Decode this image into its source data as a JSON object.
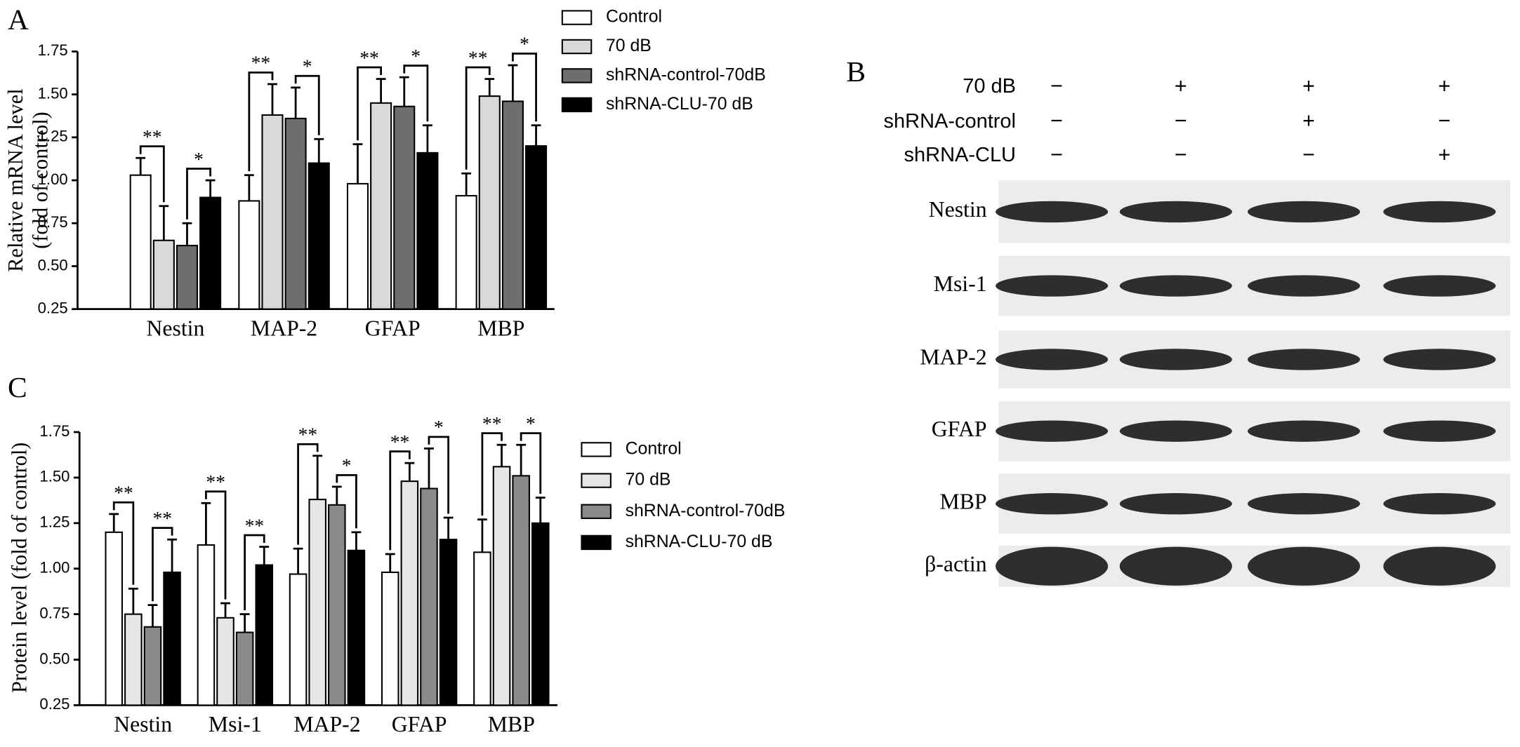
{
  "panel_labels": [
    "A",
    "B",
    "C"
  ],
  "chart_data": [
    {
      "type": "bar",
      "ylabel": [
        "Relative mRNA level",
        "(fold of control)"
      ],
      "categories": [
        "Nestin",
        "MAP-2",
        "GFAP",
        "MBP"
      ],
      "ylim": [
        0.25,
        1.75
      ],
      "yticks": [
        0.25,
        {
          "value": 0.5,
          "label": "0.50"
        },
        0.75,
        {
          "value": 1.0,
          "label": "1.00"
        },
        1.25,
        {
          "value": 1.5,
          "label": "1.50"
        },
        1.75
      ],
      "series": [
        {
          "name": "Control",
          "color": "#ffffff",
          "values": [
            1.03,
            0.88,
            0.98,
            0.91
          ],
          "errors": [
            0.1,
            0.15,
            0.23,
            0.13
          ]
        },
        {
          "name": "70 dB",
          "color": "#d9d9d9",
          "values": [
            0.65,
            1.38,
            1.45,
            1.49
          ],
          "errors": [
            0.2,
            0.18,
            0.14,
            0.1
          ]
        },
        {
          "name": "shRNA-control-70dB",
          "color": "#6e6e6e",
          "values": [
            0.62,
            1.36,
            1.43,
            1.46
          ],
          "errors": [
            0.13,
            0.18,
            0.17,
            0.21
          ]
        },
        {
          "name": "shRNA-CLU-70 dB",
          "color": "#000000",
          "values": [
            0.9,
            1.1,
            1.16,
            1.2
          ],
          "errors": [
            0.1,
            0.14,
            0.16,
            0.12
          ]
        }
      ],
      "significance": [
        [
          "**",
          "*"
        ],
        [
          "**",
          "*"
        ],
        [
          "**",
          "*"
        ],
        [
          "**",
          "*"
        ]
      ]
    },
    {
      "type": "bar",
      "ylabel": [
        "Protein level (fold of control)"
      ],
      "categories": [
        "Nestin",
        "Msi-1",
        "MAP-2",
        "GFAP",
        "MBP"
      ],
      "ylim": [
        0.25,
        1.75
      ],
      "yticks": [
        0.25,
        {
          "value": 0.5,
          "label": "0.50"
        },
        0.75,
        {
          "value": 1.0,
          "label": "1.00"
        },
        1.25,
        {
          "value": 1.5,
          "label": "1.50"
        },
        1.75
      ],
      "series": [
        {
          "name": "Control",
          "color": "#ffffff",
          "values": [
            1.2,
            1.13,
            0.97,
            0.98,
            1.09
          ],
          "errors": [
            0.1,
            0.23,
            0.14,
            0.1,
            0.18
          ]
        },
        {
          "name": "70 dB",
          "color": "#e6e6e6",
          "values": [
            0.75,
            0.73,
            1.38,
            1.48,
            1.56
          ],
          "errors": [
            0.14,
            0.08,
            0.24,
            0.1,
            0.12
          ]
        },
        {
          "name": "shRNA-control-70dB",
          "color": "#8a8a8a",
          "values": [
            0.68,
            0.65,
            1.35,
            1.44,
            1.51
          ],
          "errors": [
            0.12,
            0.1,
            0.1,
            0.22,
            0.17
          ]
        },
        {
          "name": "shRNA-CLU-70 dB",
          "color": "#000000",
          "values": [
            0.98,
            1.02,
            1.1,
            1.16,
            1.25
          ],
          "errors": [
            0.18,
            0.1,
            0.1,
            0.12,
            0.14
          ]
        }
      ],
      "significance": [
        [
          "**",
          "**"
        ],
        [
          "**",
          "**"
        ],
        [
          "**",
          "*"
        ],
        [
          "**",
          "*"
        ],
        [
          "**",
          "*"
        ]
      ]
    }
  ],
  "blot": {
    "treatments": [
      {
        "label": "70 dB",
        "signs": [
          "−",
          "+",
          "+",
          "+"
        ]
      },
      {
        "label": "shRNA-control",
        "signs": [
          "−",
          "−",
          "+",
          "−"
        ]
      },
      {
        "label": "shRNA-CLU",
        "signs": [
          "−",
          "−",
          "−",
          "+"
        ]
      }
    ],
    "rows": [
      "Nestin",
      "Msi-1",
      "MAP-2",
      "GFAP",
      "MBP",
      "β-actin"
    ]
  }
}
